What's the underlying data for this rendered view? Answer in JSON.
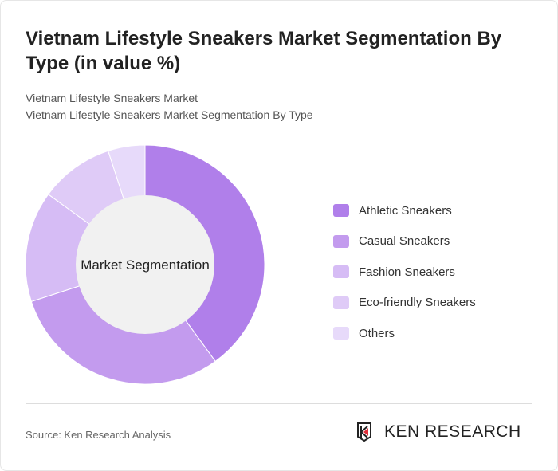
{
  "header": {
    "title": "Vietnam Lifestyle Sneakers Market Segmentation By Type (in value %)",
    "subtitle_1": "Vietnam Lifestyle Sneakers Market",
    "subtitle_2": "Vietnam Lifestyle Sneakers Market Segmentation By Type"
  },
  "chart_data": {
    "type": "pie",
    "donut": true,
    "center_label": "Market Segmentation",
    "categories": [
      "Athletic Sneakers",
      "Casual Sneakers",
      "Fashion Sneakers",
      "Eco-friendly Sneakers",
      "Others"
    ],
    "values": [
      40,
      30,
      15,
      10,
      5
    ],
    "colors": [
      "#b07fea",
      "#c39bee",
      "#d6bcf5",
      "#dfcbf7",
      "#e7dafa"
    ],
    "legend_position": "right"
  },
  "footer": {
    "source": "Source: Ken Research Analysis",
    "logo_text": "KEN RESEARCH"
  }
}
